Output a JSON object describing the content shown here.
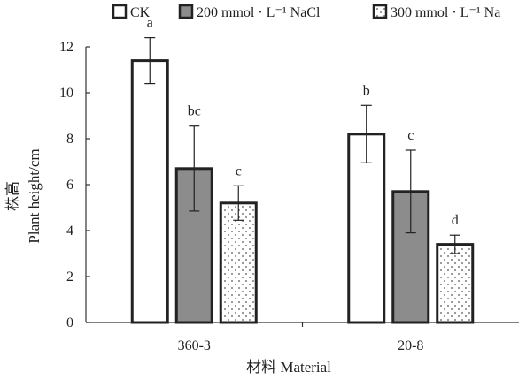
{
  "chart_data": {
    "type": "bar",
    "categories": [
      "360-3",
      "20-8"
    ],
    "series": [
      {
        "name": "CK",
        "values": [
          11.4,
          8.2
        ],
        "error": [
          1.0,
          1.25
        ],
        "letters": [
          "a",
          "b"
        ],
        "fill": "#ffffff",
        "pattern": "none"
      },
      {
        "name": "200 mmol · L⁻¹ NaCl",
        "values": [
          6.7,
          5.7
        ],
        "error": [
          1.85,
          1.8
        ],
        "letters": [
          "bc",
          "c"
        ],
        "fill": "#8c8c8c",
        "pattern": "none"
      },
      {
        "name": "300 mmol · L⁻¹ Na",
        "values": [
          5.2,
          3.4
        ],
        "error": [
          0.75,
          0.4
        ],
        "letters": [
          "c",
          "d"
        ],
        "fill": "#ffffff",
        "pattern": "dots"
      }
    ],
    "ylim": [
      0,
      12
    ],
    "yticks": [
      0,
      2,
      4,
      6,
      8,
      10,
      12
    ],
    "ylabel_cn": "株高",
    "ylabel": "Plant height/cm",
    "xlabel": "材料 Material",
    "legend_position": "top",
    "grid": false
  }
}
